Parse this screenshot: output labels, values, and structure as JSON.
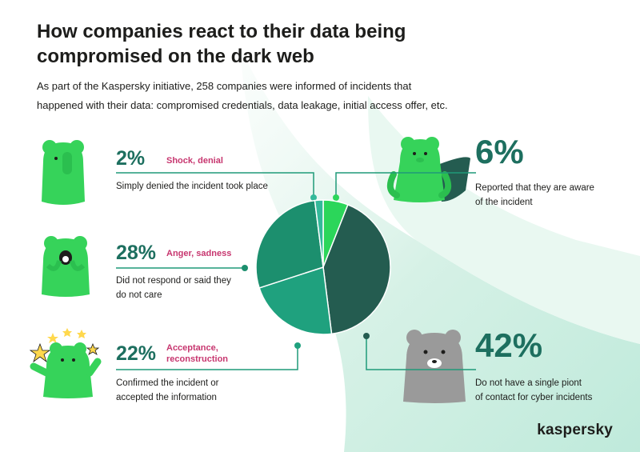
{
  "header": {
    "title_line1": "How companies react to their data being",
    "title_line2": "compromised on the dark web",
    "subtitle_line1": "As part of the Kaspersky initiative, 258 companies were informed of incidents that",
    "subtitle_line2": "happened with their data: compromised credentials, data leakage, initial access offer, etc."
  },
  "reactions": {
    "shock": {
      "pct": "2%",
      "label": "Shock, denial",
      "desc": "Simply denied the incident took place"
    },
    "anger": {
      "pct": "28%",
      "label": "Anger, sadness",
      "desc_line1": "Did not respond or said they",
      "desc_line2": "do not care"
    },
    "acceptance": {
      "pct": "22%",
      "label_line1": "Acceptance,",
      "label_line2": "reconstruction",
      "desc_line1": "Confirmed the incident or",
      "desc_line2": "accepted the information"
    },
    "aware": {
      "pct": "6%",
      "desc_line1": "Reported that they are aware",
      "desc_line2": "of the incident"
    },
    "no_contact": {
      "pct": "42%",
      "desc_line1": "Do not have a single piont",
      "desc_line2": "of contact for cyber incidents"
    }
  },
  "brand": {
    "logo": "kaspersky"
  },
  "colors": {
    "aware": "#2bd65a",
    "no_contact": "#245c50",
    "acceptance": "#1fa17e",
    "anger": "#1c8f6e",
    "shock": "#34b99a",
    "pct_text": "#1d6f5f",
    "label_text": "#c7366f",
    "bear_green": "#36d35a",
    "bear_gray": "#9a9a9a"
  },
  "chart_data": {
    "type": "pie",
    "categories": [
      "Reported that they are aware of the incident",
      "Do not have a single piont of contact for cyber incidents",
      "Confirmed the incident or accepted the information",
      "Did not respond or said they do not care",
      "Simply denied the incident took place"
    ],
    "values": [
      6,
      42,
      22,
      28,
      2
    ],
    "start": "top, clockwise"
  }
}
